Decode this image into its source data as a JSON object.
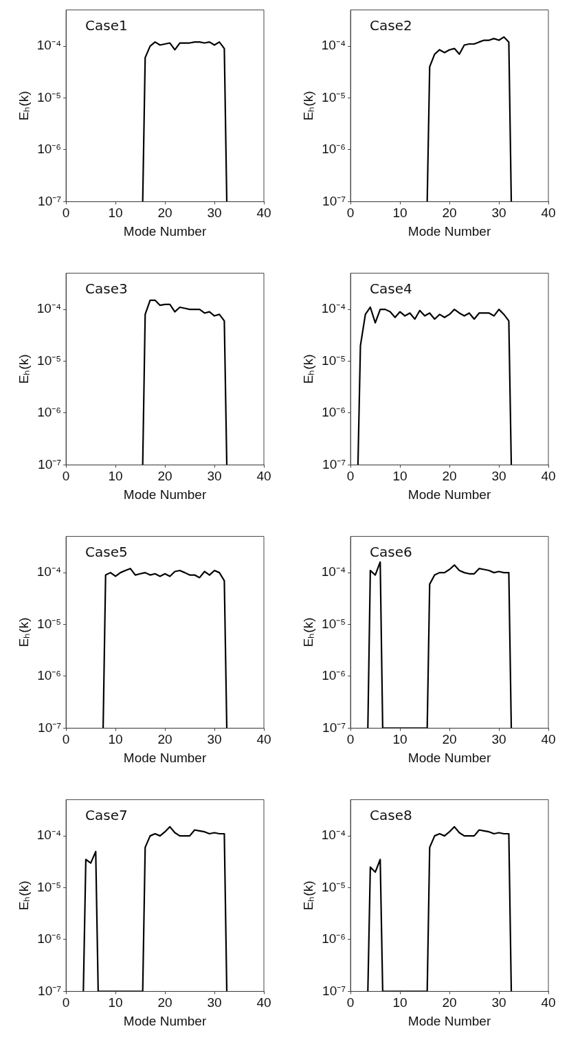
{
  "chart_data": [
    {
      "type": "line",
      "title": "Case1",
      "xlabel": "Mode Number",
      "ylabel": "Eₕ(k)",
      "log": true,
      "marker": "none",
      "xlim": [
        0,
        40
      ],
      "xticks": [
        0,
        10,
        20,
        30,
        40
      ],
      "ylim": [
        1e-07,
        0.0005
      ],
      "yticks": [
        {
          "value": 1e-07,
          "label": "10⁻⁷"
        },
        {
          "value": 1e-06,
          "label": "10⁻⁶"
        },
        {
          "value": 1e-05,
          "label": "10⁻⁵"
        },
        {
          "value": 0.0001,
          "label": "10⁻⁴"
        }
      ],
      "series": [
        {
          "color": "#000000",
          "x": [
            15.5,
            16,
            17,
            18,
            19,
            20,
            21,
            22,
            23,
            24,
            25,
            26,
            27,
            28,
            29,
            30,
            31,
            32,
            32.5
          ],
          "values": [
            1e-07,
            6e-05,
            0.0001,
            0.00012,
            0.000105,
            0.00011,
            0.000115,
            8.5e-05,
            0.000115,
            0.000115,
            0.000115,
            0.00012,
            0.00012,
            0.000115,
            0.00012,
            0.000105,
            0.00012,
            9e-05,
            1e-07
          ]
        }
      ]
    },
    {
      "type": "line",
      "title": "Case2",
      "xlabel": "Mode Number",
      "ylabel": "Eₕ(k)",
      "log": true,
      "marker": "none",
      "xlim": [
        0,
        40
      ],
      "xticks": [
        0,
        10,
        20,
        30,
        40
      ],
      "ylim": [
        1e-07,
        0.0005
      ],
      "yticks": [
        {
          "value": 1e-07,
          "label": "10⁻⁷"
        },
        {
          "value": 1e-06,
          "label": "10⁻⁶"
        },
        {
          "value": 1e-05,
          "label": "10⁻⁵"
        },
        {
          "value": 0.0001,
          "label": "10⁻⁴"
        }
      ],
      "series": [
        {
          "color": "#000000",
          "x": [
            15.5,
            16,
            17,
            18,
            19,
            20,
            21,
            22,
            23,
            24,
            25,
            26,
            27,
            28,
            29,
            30,
            31,
            32,
            32.5
          ],
          "values": [
            1e-07,
            4e-05,
            7e-05,
            8.5e-05,
            7.5e-05,
            8.5e-05,
            9e-05,
            7e-05,
            0.000105,
            0.00011,
            0.00011,
            0.00012,
            0.00013,
            0.00013,
            0.00014,
            0.00013,
            0.00015,
            0.00012,
            1e-07
          ]
        }
      ]
    },
    {
      "type": "line",
      "title": "Case3",
      "xlabel": "Mode Number",
      "ylabel": "Eₕ(k)",
      "log": true,
      "marker": "none",
      "xlim": [
        0,
        40
      ],
      "xticks": [
        0,
        10,
        20,
        30,
        40
      ],
      "ylim": [
        1e-07,
        0.0005
      ],
      "yticks": [
        {
          "value": 1e-07,
          "label": "10⁻⁷"
        },
        {
          "value": 1e-06,
          "label": "10⁻⁶"
        },
        {
          "value": 1e-05,
          "label": "10⁻⁵"
        },
        {
          "value": 0.0001,
          "label": "10⁻⁴"
        }
      ],
      "series": [
        {
          "color": "#000000",
          "x": [
            15.5,
            16,
            17,
            18,
            19,
            20,
            21,
            22,
            23,
            24,
            25,
            26,
            27,
            28,
            29,
            30,
            31,
            32,
            32.5
          ],
          "values": [
            1e-07,
            8e-05,
            0.00015,
            0.00015,
            0.00012,
            0.000125,
            0.000125,
            9e-05,
            0.00011,
            0.000105,
            0.0001,
            0.0001,
            0.0001,
            8.5e-05,
            9e-05,
            7.5e-05,
            8e-05,
            6e-05,
            1e-07
          ]
        }
      ]
    },
    {
      "type": "line",
      "title": "Case4",
      "xlabel": "Mode Number",
      "ylabel": "Eₕ(k)",
      "log": true,
      "marker": "none",
      "xlim": [
        0,
        40
      ],
      "xticks": [
        0,
        10,
        20,
        30,
        40
      ],
      "ylim": [
        1e-07,
        0.0005
      ],
      "yticks": [
        {
          "value": 1e-07,
          "label": "10⁻⁷"
        },
        {
          "value": 1e-06,
          "label": "10⁻⁶"
        },
        {
          "value": 1e-05,
          "label": "10⁻⁵"
        },
        {
          "value": 0.0001,
          "label": "10⁻⁴"
        }
      ],
      "series": [
        {
          "color": "#000000",
          "x": [
            1.5,
            2,
            3,
            4,
            5,
            6,
            7,
            8,
            9,
            10,
            11,
            12,
            13,
            14,
            15,
            16,
            17,
            18,
            19,
            20,
            21,
            22,
            23,
            24,
            25,
            26,
            27,
            28,
            29,
            30,
            31,
            32,
            32.5
          ],
          "values": [
            1e-07,
            2e-05,
            8e-05,
            0.00011,
            5.5e-05,
            0.0001,
            0.0001,
            9e-05,
            7e-05,
            9e-05,
            7.5e-05,
            8.5e-05,
            6.5e-05,
            9.5e-05,
            7.5e-05,
            8.5e-05,
            6.5e-05,
            8e-05,
            7e-05,
            8e-05,
            0.0001,
            8.5e-05,
            7.5e-05,
            8.5e-05,
            6.5e-05,
            8.5e-05,
            8.5e-05,
            8.5e-05,
            7.5e-05,
            0.0001,
            8e-05,
            6e-05,
            1e-07
          ]
        }
      ]
    },
    {
      "type": "line",
      "title": "Case5",
      "xlabel": "Mode Number",
      "ylabel": "Eₕ(k)",
      "log": true,
      "marker": "none",
      "xlim": [
        0,
        40
      ],
      "xticks": [
        0,
        10,
        20,
        30,
        40
      ],
      "ylim": [
        1e-07,
        0.0005
      ],
      "yticks": [
        {
          "value": 1e-07,
          "label": "10⁻⁷"
        },
        {
          "value": 1e-06,
          "label": "10⁻⁶"
        },
        {
          "value": 1e-05,
          "label": "10⁻⁵"
        },
        {
          "value": 0.0001,
          "label": "10⁻⁴"
        }
      ],
      "series": [
        {
          "color": "#000000",
          "x": [
            7.5,
            8,
            9,
            10,
            11,
            12,
            13,
            14,
            15,
            16,
            17,
            18,
            19,
            20,
            21,
            22,
            23,
            24,
            25,
            26,
            27,
            28,
            29,
            30,
            31,
            32,
            32.5
          ],
          "values": [
            1e-07,
            9e-05,
            0.0001,
            8.5e-05,
            0.0001,
            0.00011,
            0.00012,
            9e-05,
            9.5e-05,
            0.0001,
            9e-05,
            9.5e-05,
            8.5e-05,
            9.5e-05,
            8.5e-05,
            0.000105,
            0.00011,
            0.0001,
            9e-05,
            9e-05,
            8e-05,
            0.000105,
            9e-05,
            0.00011,
            0.0001,
            7e-05,
            1e-07
          ]
        }
      ]
    },
    {
      "type": "line",
      "title": "Case6",
      "xlabel": "Mode Number",
      "ylabel": "Eₕ(k)",
      "log": true,
      "marker": "none",
      "xlim": [
        0,
        40
      ],
      "xticks": [
        0,
        10,
        20,
        30,
        40
      ],
      "ylim": [
        1e-07,
        0.0005
      ],
      "yticks": [
        {
          "value": 1e-07,
          "label": "10⁻⁷"
        },
        {
          "value": 1e-06,
          "label": "10⁻⁶"
        },
        {
          "value": 1e-05,
          "label": "10⁻⁵"
        },
        {
          "value": 0.0001,
          "label": "10⁻⁴"
        }
      ],
      "series": [
        {
          "color": "#000000",
          "x": [
            3.5,
            4,
            5,
            6,
            6.5,
            15.5,
            16,
            17,
            18,
            19,
            20,
            21,
            22,
            23,
            24,
            25,
            26,
            27,
            28,
            29,
            30,
            31,
            32,
            32.5
          ],
          "values": [
            1e-07,
            0.00011,
            9e-05,
            0.00016,
            1e-07,
            1e-07,
            6e-05,
            9e-05,
            0.0001,
            0.0001,
            0.000115,
            0.00014,
            0.00011,
            0.0001,
            9.5e-05,
            9.5e-05,
            0.00012,
            0.000115,
            0.00011,
            0.0001,
            0.000105,
            0.0001,
            0.0001,
            1e-07
          ]
        }
      ]
    },
    {
      "type": "line",
      "title": "Case7",
      "xlabel": "Mode Number",
      "ylabel": "Eₕ(k)",
      "log": true,
      "marker": "none",
      "xlim": [
        0,
        40
      ],
      "xticks": [
        0,
        10,
        20,
        30,
        40
      ],
      "ylim": [
        1e-07,
        0.0005
      ],
      "yticks": [
        {
          "value": 1e-07,
          "label": "10⁻⁷"
        },
        {
          "value": 1e-06,
          "label": "10⁻⁶"
        },
        {
          "value": 1e-05,
          "label": "10⁻⁵"
        },
        {
          "value": 0.0001,
          "label": "10⁻⁴"
        }
      ],
      "series": [
        {
          "color": "#000000",
          "x": [
            3.5,
            4,
            5,
            6,
            6.5,
            15.5,
            16,
            17,
            18,
            19,
            20,
            21,
            22,
            23,
            24,
            25,
            26,
            27,
            28,
            29,
            30,
            31,
            32,
            32.5
          ],
          "values": [
            1e-07,
            3.5e-05,
            3e-05,
            5e-05,
            1e-07,
            1e-07,
            6e-05,
            0.0001,
            0.00011,
            0.0001,
            0.00012,
            0.00015,
            0.000115,
            0.0001,
            0.0001,
            0.0001,
            0.00013,
            0.000125,
            0.00012,
            0.00011,
            0.000115,
            0.00011,
            0.00011,
            1e-07
          ]
        }
      ]
    },
    {
      "type": "line",
      "title": "Case8",
      "xlabel": "Mode Number",
      "ylabel": "Eₕ(k)",
      "log": true,
      "marker": "none",
      "xlim": [
        0,
        40
      ],
      "xticks": [
        0,
        10,
        20,
        30,
        40
      ],
      "ylim": [
        1e-07,
        0.0005
      ],
      "yticks": [
        {
          "value": 1e-07,
          "label": "10⁻⁷"
        },
        {
          "value": 1e-06,
          "label": "10⁻⁶"
        },
        {
          "value": 1e-05,
          "label": "10⁻⁵"
        },
        {
          "value": 0.0001,
          "label": "10⁻⁴"
        }
      ],
      "series": [
        {
          "color": "#000000",
          "x": [
            3.5,
            4,
            5,
            6,
            6.5,
            15.5,
            16,
            17,
            18,
            19,
            20,
            21,
            22,
            23,
            24,
            25,
            26,
            27,
            28,
            29,
            30,
            31,
            32,
            32.5
          ],
          "values": [
            1e-07,
            2.5e-05,
            2e-05,
            3.5e-05,
            1e-07,
            1e-07,
            6e-05,
            0.0001,
            0.00011,
            0.0001,
            0.00012,
            0.00015,
            0.000115,
            0.0001,
            0.0001,
            0.0001,
            0.00013,
            0.000125,
            0.00012,
            0.00011,
            0.000115,
            0.00011,
            0.00011,
            1e-07
          ]
        }
      ]
    }
  ]
}
